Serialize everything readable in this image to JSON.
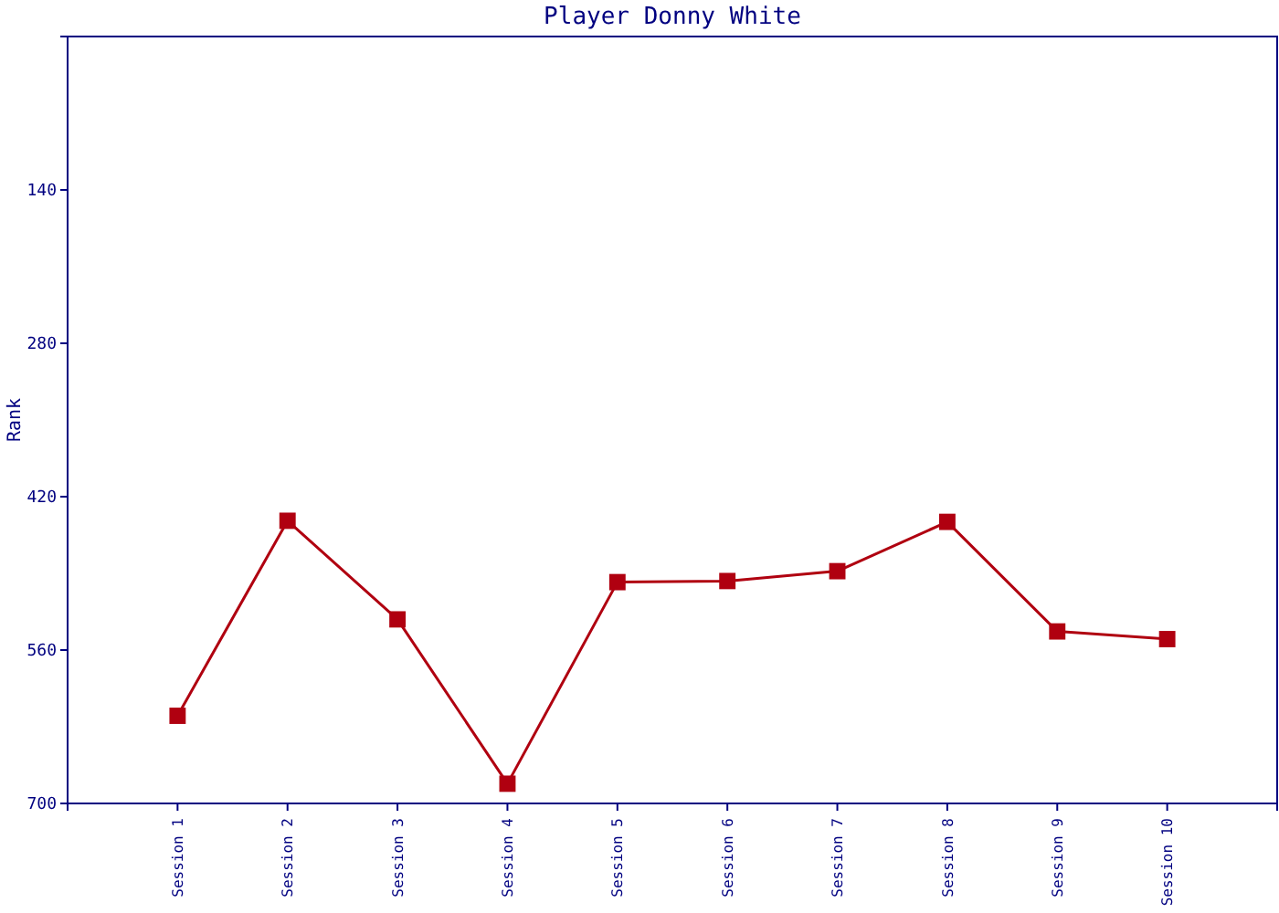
{
  "chart_data": {
    "type": "line",
    "title": "Player Donny White",
    "ylabel": "Rank",
    "categories": [
      "Session 1",
      "Session 2",
      "Session 3",
      "Session 4",
      "Session 5",
      "Session 6",
      "Session 7",
      "Session 8",
      "Session 9",
      "Session 10"
    ],
    "series": [
      {
        "color": "#b00010",
        "values": [
          620,
          442,
          532,
          682,
          498,
          497,
          488,
          443,
          543,
          550
        ]
      }
    ],
    "ylim": [
      700,
      0
    ],
    "yticks": [
      140,
      280,
      420,
      560,
      700
    ],
    "marker": "square",
    "line_style": "solid",
    "grid": false
  }
}
